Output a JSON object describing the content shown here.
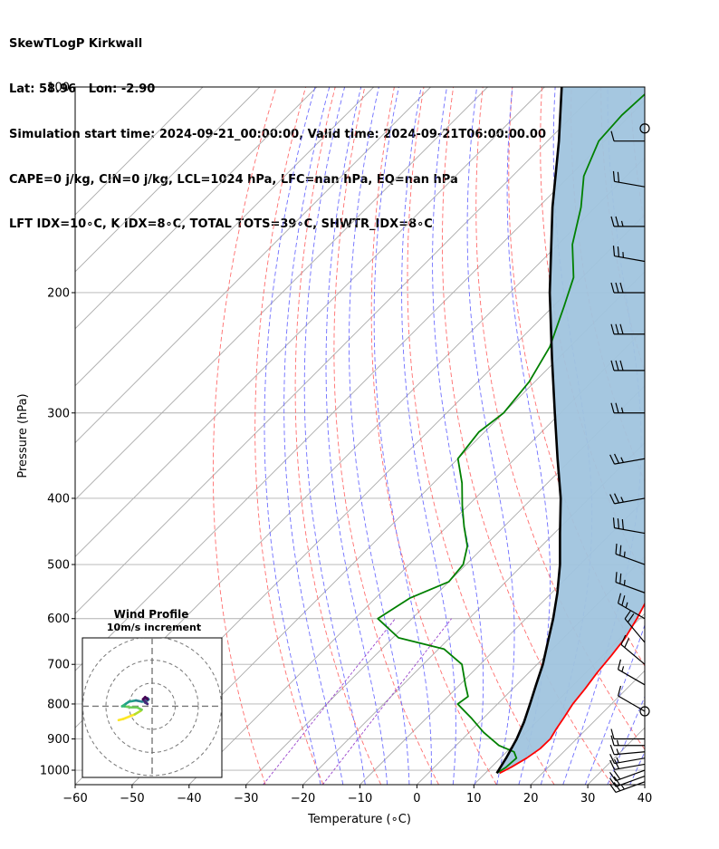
{
  "header": {
    "lines": [
      "SkewTLogP Kirkwall",
      "Lat: 58.96   Lon: -2.90",
      "Simulation start time: 2024-09-21_00:00:00, Valid time: 2024-09-21T06:00:00.00",
      "CAPE=0 j/kg, CIN=0 j/kg, LCL=1024 hPa, LFC=nan hPa, EQ=nan hPa",
      "LFT IDX=10∘C, K IDX=8∘C, TOTAL TOTS=39∘C, SHWTR_IDX=8∘C"
    ]
  },
  "colors": {
    "temperature": "#ff0000",
    "dewpoint": "#008000",
    "parcel": "#000000",
    "cape_fill": "#a0c4de",
    "isotherm": "#aaaaaa",
    "dry_adiabat": "#ff6666",
    "moist_adiabat": "#6666ff",
    "mixing_ratio": "#9944cc",
    "grid": "#b0b0b0"
  },
  "chart_data": [
    {
      "type": "line",
      "chart_kind": "skew-T log-P diagram",
      "xlabel": "Temperature (∘C)",
      "ylabel": "Pressure (hPa)",
      "xlim": [
        -60,
        40
      ],
      "ylim": [
        1050,
        100
      ],
      "y_scale": "log",
      "x_ticks": [
        "−60",
        "−50",
        "−40",
        "−30",
        "−20",
        "−10",
        "0",
        "10",
        "20",
        "30",
        "40"
      ],
      "y_ticks": [
        "100",
        "200",
        "300",
        "400",
        "500",
        "600",
        "700",
        "800",
        "900",
        "1000"
      ],
      "grid": true,
      "skew_deg": 45,
      "series": [
        {
          "role": "temperature",
          "points": [
            [
              1010,
              12.5
            ],
            [
              990,
              13.5
            ],
            [
              960,
              14.6
            ],
            [
              930,
              15.3
            ],
            [
              900,
              15.4
            ],
            [
              870,
              14.7
            ],
            [
              840,
              14.1
            ],
            [
              800,
              13.2
            ],
            [
              760,
              12.7
            ],
            [
              720,
              12.0
            ],
            [
              680,
              11.5
            ],
            [
              640,
              10.8
            ],
            [
              600,
              9.5
            ],
            [
              560,
              7.8
            ],
            [
              520,
              5.8
            ],
            [
              480,
              3.5
            ],
            [
              450,
              1.3
            ],
            [
              420,
              -1.2
            ],
            [
              390,
              -4.0
            ],
            [
              360,
              -7.0
            ],
            [
              330,
              -10.0
            ],
            [
              300,
              -13.0
            ],
            [
              270,
              -16.5
            ],
            [
              245,
              -20.0
            ],
            [
              225,
              -23.5
            ],
            [
              205,
              -27.0
            ],
            [
              190,
              -31.0
            ],
            [
              178,
              -33.5
            ],
            [
              165,
              -35.0
            ],
            [
              150,
              -37.0
            ],
            [
              135,
              -38.5
            ],
            [
              120,
              -40.5
            ],
            [
              110,
              -42.5
            ],
            [
              100,
              -44.5
            ]
          ]
        },
        {
          "role": "dewpoint",
          "points": [
            [
              1010,
              12.0
            ],
            [
              990,
              12.6
            ],
            [
              960,
              12.8
            ],
            [
              940,
              11.3
            ],
            [
              920,
              7.5
            ],
            [
              880,
              2.5
            ],
            [
              840,
              -2.0
            ],
            [
              800,
              -7.0
            ],
            [
              780,
              -6.5
            ],
            [
              750,
              -9.0
            ],
            [
              700,
              -13.2
            ],
            [
              665,
              -19.0
            ],
            [
              640,
              -29.0
            ],
            [
              600,
              -36.0
            ],
            [
              560,
              -34.0
            ],
            [
              530,
              -30.0
            ],
            [
              500,
              -30.5
            ],
            [
              470,
              -33.0
            ],
            [
              440,
              -37.0
            ],
            [
              410,
              -41.0
            ],
            [
              380,
              -45.0
            ],
            [
              350,
              -50.0
            ],
            [
              320,
              -51.0
            ],
            [
              300,
              -50.0
            ],
            [
              270,
              -51.0
            ],
            [
              240,
              -53.5
            ],
            [
              210,
              -58.0
            ],
            [
              190,
              -61.5
            ],
            [
              170,
              -67.5
            ],
            [
              150,
              -72.5
            ],
            [
              135,
              -77.5
            ],
            [
              120,
              -81.0
            ],
            [
              110,
              -81.5
            ],
            [
              100,
              -81.0
            ]
          ]
        },
        {
          "role": "parcel",
          "points": [
            [
              1010,
              12.0
            ],
            [
              960,
              11.0
            ],
            [
              900,
              9.5
            ],
            [
              850,
              7.8
            ],
            [
              800,
              5.7
            ],
            [
              750,
              3.4
            ],
            [
              700,
              1.0
            ],
            [
              650,
              -2.0
            ],
            [
              600,
              -5.2
            ],
            [
              550,
              -9.0
            ],
            [
              500,
              -13.5
            ],
            [
              450,
              -19.0
            ],
            [
              400,
              -25.0
            ],
            [
              350,
              -32.5
            ],
            [
              300,
              -41.0
            ],
            [
              250,
              -51.0
            ],
            [
              200,
              -63.0
            ],
            [
              150,
              -77.5
            ],
            [
              120,
              -88.0
            ],
            [
              100,
              -97.0
            ]
          ]
        }
      ],
      "wind_barbs": {
        "pressure": [
          1040,
          1020,
          1000,
          980,
          960,
          940,
          920,
          900,
          820,
          750,
          700,
          650,
          600,
          550,
          500,
          450,
          400,
          350,
          300,
          260,
          230,
          200,
          180,
          160,
          140,
          120
        ],
        "direction": [
          250,
          250,
          250,
          260,
          260,
          265,
          270,
          270,
          300,
          300,
          310,
          320,
          300,
          290,
          290,
          280,
          260,
          260,
          270,
          270,
          270,
          270,
          280,
          270,
          280,
          270
        ],
        "speed": [
          25,
          20,
          20,
          20,
          15,
          15,
          15,
          10,
          10,
          15,
          20,
          20,
          25,
          25,
          25,
          30,
          25,
          25,
          25,
          30,
          30,
          30,
          25,
          25,
          20,
          10
        ],
        "calm_at": [
          820,
          115
        ]
      }
    },
    {
      "type": "scatter",
      "chart_kind": "hodograph",
      "title": "Wind Profile",
      "subtitle": "10m/s increment",
      "rings": [
        10,
        20,
        30
      ],
      "points": [
        [
          -14.5,
          -6.0
        ],
        [
          -12.5,
          -5.5
        ],
        [
          -10.0,
          -4.5
        ],
        [
          -7.5,
          -3.5
        ],
        [
          -5.0,
          -2.0
        ],
        [
          -4.5,
          -1.5
        ],
        [
          -6.5,
          -0.5
        ],
        [
          -9.5,
          -0.5
        ],
        [
          -12.0,
          0.0
        ],
        [
          -13.0,
          0.0
        ],
        [
          -11.5,
          1.0
        ],
        [
          -10.0,
          2.0
        ],
        [
          -7.0,
          2.5
        ],
        [
          -4.5,
          2.0
        ],
        [
          -3.0,
          2.0
        ],
        [
          -2.0,
          2.5
        ],
        [
          -1.5,
          3.0
        ],
        [
          -2.0,
          3.5
        ],
        [
          -3.5,
          3.0
        ],
        [
          -3.0,
          1.5
        ],
        [
          -2.0,
          1.0
        ],
        [
          -3.0,
          2.0
        ],
        [
          -4.0,
          3.0
        ],
        [
          -3.0,
          4.0
        ],
        [
          -2.0,
          3.0
        ]
      ]
    }
  ]
}
